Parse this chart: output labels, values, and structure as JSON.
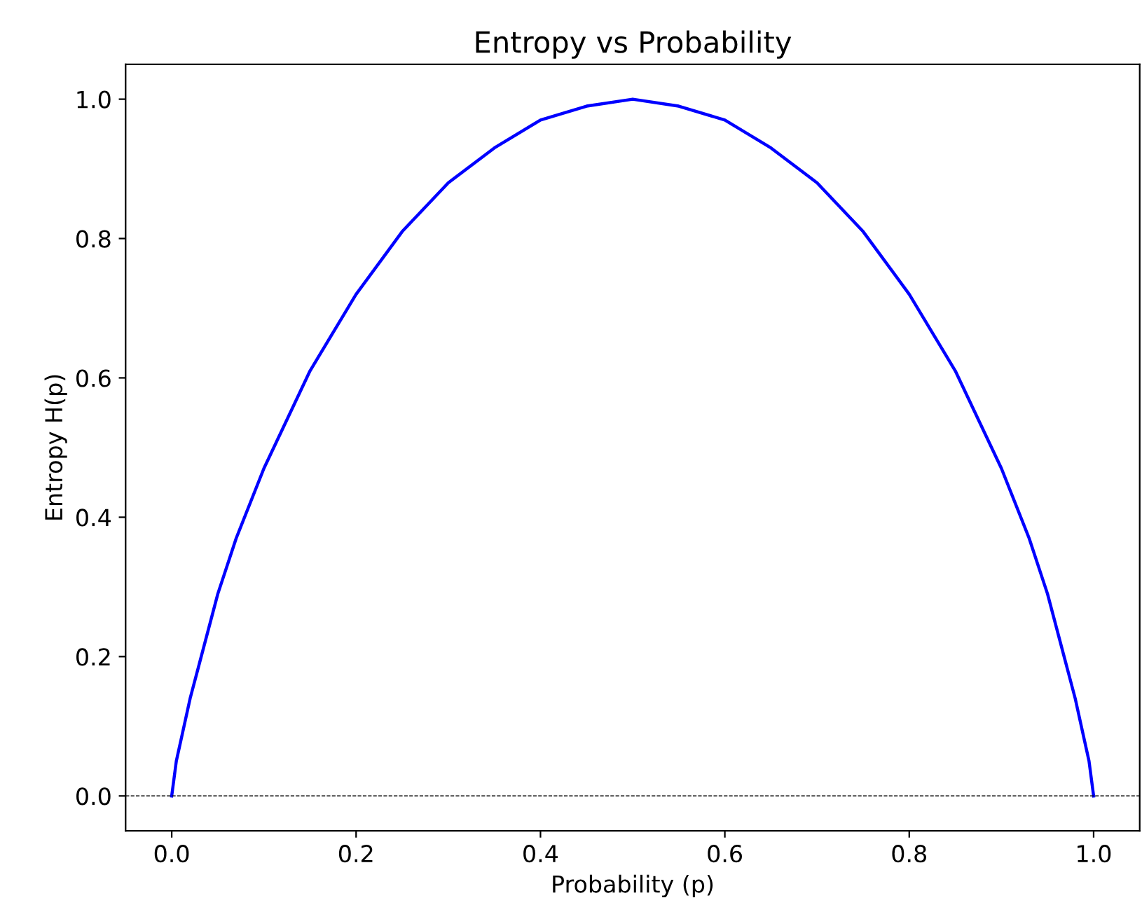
{
  "chart_data": {
    "type": "line",
    "title": "Entropy vs Probability",
    "xlabel": "Probability (p)",
    "ylabel": "Entropy H(p)",
    "x": [
      0,
      0.005,
      0.01,
      0.02,
      0.03,
      0.05,
      0.07,
      0.1,
      0.15,
      0.2,
      0.25,
      0.3,
      0.35,
      0.4,
      0.45,
      0.5,
      0.55,
      0.6,
      0.65,
      0.7,
      0.75,
      0.8,
      0.85,
      0.9,
      0.93,
      0.95,
      0.97,
      0.98,
      0.99,
      0.995,
      1
    ],
    "series": [
      {
        "color": "#0000ff",
        "values": [
          0,
          0.05,
          0.08,
          0.14,
          0.19,
          0.29,
          0.37,
          0.47,
          0.61,
          0.72,
          0.81,
          0.88,
          0.93,
          0.97,
          0.99,
          1.0,
          0.99,
          0.97,
          0.93,
          0.88,
          0.81,
          0.72,
          0.61,
          0.47,
          0.37,
          0.29,
          0.19,
          0.14,
          0.08,
          0.05,
          0
        ]
      }
    ],
    "xlim": [
      -0.05,
      1.05
    ],
    "ylim": [
      -0.05,
      1.05
    ],
    "xticks": [
      {
        "value": 0,
        "label": "0.0"
      },
      0.2,
      0.4,
      0.6,
      0.8,
      {
        "value": 1,
        "label": "1.0"
      }
    ],
    "yticks": [
      {
        "value": 0,
        "label": "0.0"
      },
      0.2,
      0.4,
      0.6,
      0.8,
      {
        "value": 1,
        "label": "1.0"
      }
    ],
    "ref_lines": [
      {
        "axis": "y",
        "value": 0,
        "color": "#000000",
        "line_style": "dashed"
      }
    ],
    "grid": false,
    "legend": false,
    "marker": "none",
    "line_style": "solid"
  }
}
